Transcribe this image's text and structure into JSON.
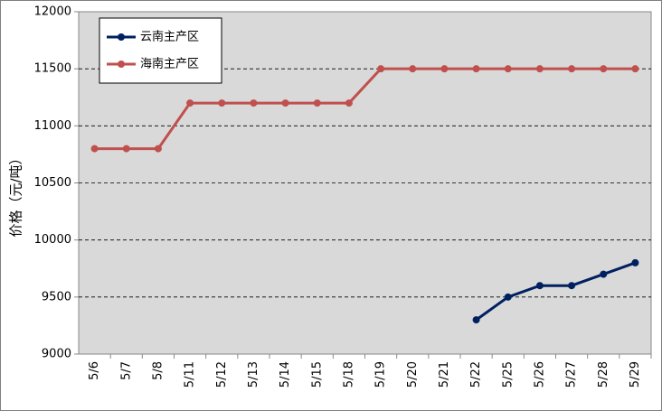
{
  "chart_data": {
    "type": "line",
    "y_label": "价格（元/吨）",
    "categories": [
      "5/6",
      "5/7",
      "5/8",
      "5/11",
      "5/12",
      "5/13",
      "5/14",
      "5/15",
      "5/18",
      "5/19",
      "5/20",
      "5/21",
      "5/22",
      "5/25",
      "5/26",
      "5/27",
      "5/28",
      "5/29"
    ],
    "series": [
      {
        "name": "云南主产区",
        "color": "#002060",
        "values": [
          null,
          null,
          null,
          null,
          null,
          null,
          null,
          null,
          null,
          null,
          null,
          null,
          9300,
          9500,
          9600,
          9600,
          9700,
          9800
        ]
      },
      {
        "name": "海南主产区",
        "color": "#c0504d",
        "values": [
          10800,
          10800,
          10800,
          11200,
          11200,
          11200,
          11200,
          11200,
          11200,
          11500,
          11500,
          11500,
          11500,
          11500,
          11500,
          11500,
          11500,
          11500
        ]
      }
    ],
    "ylim": [
      9000,
      12000
    ],
    "yticks": [
      9000,
      9500,
      10000,
      10500,
      11000,
      11500,
      12000
    ],
    "grid": true,
    "legend": "upper left"
  }
}
